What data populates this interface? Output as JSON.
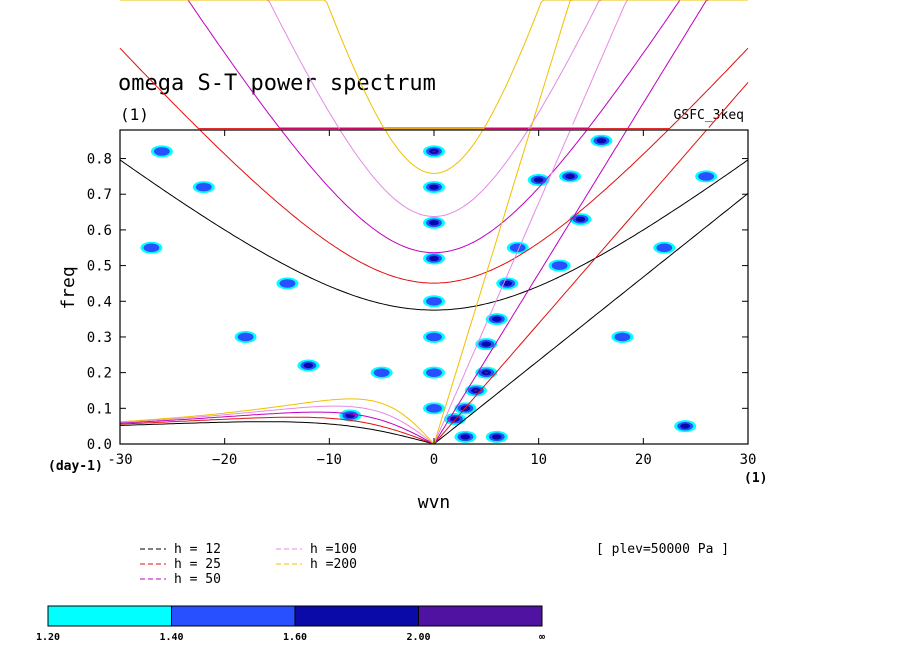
{
  "chart_data": {
    "type": "contour",
    "title": "omega S-T power spectrum",
    "subtitle": "(1)",
    "run_label": "GSFC_3keq",
    "xlabel": "wvn",
    "ylabel": "freq",
    "x_unit": "(1)",
    "y_unit": "(day-1)",
    "xlim": [
      -30,
      30
    ],
    "ylim": [
      0,
      0.88
    ],
    "x_ticks": [
      -30,
      -20,
      -10,
      0,
      10,
      20,
      30
    ],
    "x_tick_labels": [
      "-30",
      "−20",
      "−10",
      "0",
      "10",
      "20",
      "30"
    ],
    "y_ticks": [
      0,
      0.1,
      0.2,
      0.3,
      0.4,
      0.5,
      0.6,
      0.7,
      0.8
    ],
    "y_tick_labels": [
      "0.0",
      "0.1",
      "0.2",
      "0.3",
      "0.4",
      "0.5",
      "0.6",
      "0.7",
      "0.8"
    ],
    "level_note": "[ plev=50000 Pa ]",
    "dispersion_curves": [
      {
        "name": "h = 12",
        "label": "h = 12",
        "h": 12,
        "color": "#000000",
        "label_color": "#000000"
      },
      {
        "name": "h = 25",
        "label": "h = 25",
        "h": 25,
        "color": "#e01010",
        "label_color": "#e01010"
      },
      {
        "name": "h = 50",
        "label": "h = 50",
        "h": 50,
        "color": "#c000c0",
        "label_color": "#c000c0"
      },
      {
        "name": "h =100",
        "label": "h =100",
        "h": 100,
        "color": "#e58ae5",
        "label_color": "#e58ae5"
      },
      {
        "name": "h =200",
        "label": "h =200",
        "h": 200,
        "color": "#f0c000",
        "label_color": "#f0c000"
      }
    ],
    "colorbar": {
      "levels": [
        "1.20",
        "1.40",
        "1.60",
        "2.00",
        "∞"
      ],
      "colors": [
        "#00ffff",
        "#2850ff",
        "#0a0aa8",
        "#5012a0"
      ]
    },
    "power_blobs": [
      {
        "x": 0,
        "y": 0.82,
        "v": 2.0
      },
      {
        "x": 0,
        "y": 0.72,
        "v": 1.8
      },
      {
        "x": 0,
        "y": 0.62,
        "v": 1.8
      },
      {
        "x": 0,
        "y": 0.52,
        "v": 1.6
      },
      {
        "x": 0,
        "y": 0.4,
        "v": 1.4
      },
      {
        "x": 0,
        "y": 0.3,
        "v": 1.4
      },
      {
        "x": 0,
        "y": 0.2,
        "v": 1.4
      },
      {
        "x": 0,
        "y": 0.1,
        "v": 1.4
      },
      {
        "x": 2,
        "y": 0.07,
        "v": 1.8
      },
      {
        "x": 3,
        "y": 0.1,
        "v": 2.0
      },
      {
        "x": 4,
        "y": 0.15,
        "v": 2.0
      },
      {
        "x": 5,
        "y": 0.2,
        "v": 2.0
      },
      {
        "x": 5,
        "y": 0.28,
        "v": 1.8
      },
      {
        "x": 6,
        "y": 0.35,
        "v": 1.6
      },
      {
        "x": 7,
        "y": 0.45,
        "v": 1.6
      },
      {
        "x": 8,
        "y": 0.55,
        "v": 1.4
      },
      {
        "x": 6,
        "y": 0.02,
        "v": 1.8
      },
      {
        "x": 3,
        "y": 0.02,
        "v": 1.6
      },
      {
        "x": 10,
        "y": 0.74,
        "v": 1.6
      },
      {
        "x": 13,
        "y": 0.75,
        "v": 1.6
      },
      {
        "x": 16,
        "y": 0.85,
        "v": 1.8
      },
      {
        "x": 14,
        "y": 0.63,
        "v": 1.6
      },
      {
        "x": 12,
        "y": 0.5,
        "v": 1.4
      },
      {
        "x": -12,
        "y": 0.22,
        "v": 1.6
      },
      {
        "x": -18,
        "y": 0.3,
        "v": 1.4
      },
      {
        "x": -8,
        "y": 0.08,
        "v": 1.6
      },
      {
        "x": -22,
        "y": 0.72,
        "v": 1.4
      },
      {
        "x": -26,
        "y": 0.82,
        "v": 1.4
      },
      {
        "x": -14,
        "y": 0.45,
        "v": 1.4
      },
      {
        "x": -27,
        "y": 0.55,
        "v": 1.4
      },
      {
        "x": -5,
        "y": 0.2,
        "v": 1.4
      },
      {
        "x": 24,
        "y": 0.05,
        "v": 1.6
      },
      {
        "x": 18,
        "y": 0.3,
        "v": 1.4
      },
      {
        "x": 22,
        "y": 0.55,
        "v": 1.4
      },
      {
        "x": 26,
        "y": 0.75,
        "v": 1.4
      }
    ]
  }
}
